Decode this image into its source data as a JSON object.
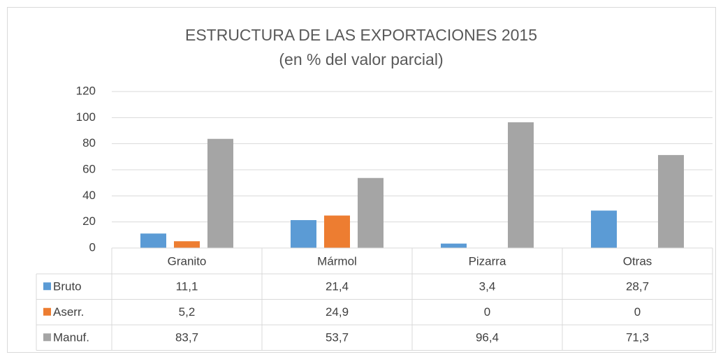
{
  "chart_data": {
    "type": "bar",
    "title": "ESTRUCTURA DE LAS EXPORTACIONES 2015",
    "subtitle": "(en % del valor parcial)",
    "categories": [
      "Granito",
      "Mármol",
      "Pizarra",
      "Otras"
    ],
    "series": [
      {
        "name": "Bruto",
        "color": "#5b9bd5",
        "values": [
          11.1,
          21.4,
          3.4,
          28.7
        ],
        "value_labels": [
          "11,1",
          "21,4",
          "3,4",
          "28,7"
        ]
      },
      {
        "name": "Aserr.",
        "color": "#ed7d31",
        "values": [
          5.2,
          24.9,
          0,
          0
        ],
        "value_labels": [
          "5,2",
          "24,9",
          "0",
          "0"
        ]
      },
      {
        "name": "Manuf.",
        "color": "#a5a5a5",
        "values": [
          83.7,
          53.7,
          96.4,
          71.3
        ],
        "value_labels": [
          "83,7",
          "53,7",
          "96,4",
          "71,3"
        ]
      }
    ],
    "ylim": [
      0,
      120
    ],
    "yticks": [
      0,
      20,
      40,
      60,
      80,
      100,
      120
    ],
    "grid": true
  }
}
